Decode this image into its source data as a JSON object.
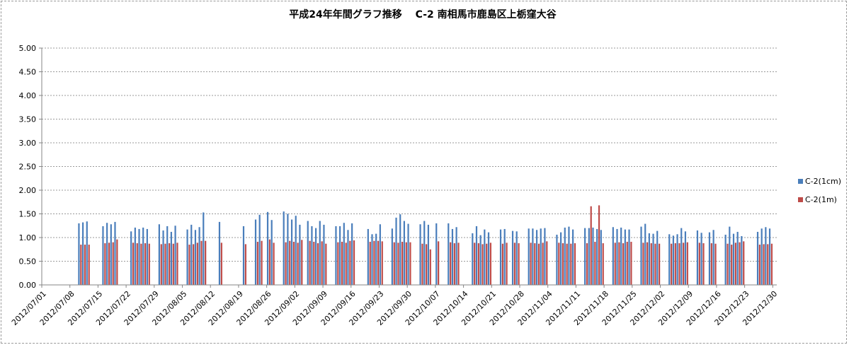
{
  "chart_data": {
    "type": "bar",
    "title": "平成24年年間グラフ推移　 C-2 南相馬市鹿島区上栃窪大谷",
    "xlabel": "",
    "ylabel": "",
    "ylim": [
      0,
      5
    ],
    "yticks": [
      "0.00",
      "0.50",
      "1.00",
      "1.50",
      "2.00",
      "2.50",
      "3.00",
      "3.50",
      "4.00",
      "4.50",
      "5.00"
    ],
    "x_range": [
      "2012/07/01",
      "2012/12/30"
    ],
    "xtick_labels": [
      "2012/07/01",
      "2012/07/08",
      "2012/07/15",
      "2012/07/22",
      "2012/07/29",
      "2012/08/05",
      "2012/08/12",
      "2012/08/19",
      "2012/08/26",
      "2012/09/02",
      "2012/09/09",
      "2012/09/16",
      "2012/09/23",
      "2012/09/30",
      "2012/10/07",
      "2012/10/14",
      "2012/10/21",
      "2012/10/28",
      "2012/11/04",
      "2012/11/11",
      "2012/11/18",
      "2012/11/25",
      "2012/12/02",
      "2012/12/09",
      "2012/12/16",
      "2012/12/23",
      "2012/12/30"
    ],
    "grid": true,
    "legend_position": "right",
    "colors": {
      "c2_1cm": "#4a7ebb",
      "c2_1m": "#be4b48",
      "grid": "#9a9a9a",
      "axis": "#868686"
    },
    "series": [
      {
        "name": "C-2(1cm)",
        "points": [
          [
            "2012/07/10",
            1.3
          ],
          [
            "2012/07/11",
            1.32
          ],
          [
            "2012/07/12",
            1.34
          ],
          [
            "2012/07/16",
            1.24
          ],
          [
            "2012/07/17",
            1.31
          ],
          [
            "2012/07/18",
            1.28
          ],
          [
            "2012/07/19",
            1.33
          ],
          [
            "2012/07/23",
            1.13
          ],
          [
            "2012/07/24",
            1.21
          ],
          [
            "2012/07/25",
            1.18
          ],
          [
            "2012/07/26",
            1.21
          ],
          [
            "2012/07/27",
            1.18
          ],
          [
            "2012/07/30",
            1.28
          ],
          [
            "2012/07/31",
            1.15
          ],
          [
            "2012/08/01",
            1.24
          ],
          [
            "2012/08/02",
            1.12
          ],
          [
            "2012/08/03",
            1.25
          ],
          [
            "2012/08/06",
            1.17
          ],
          [
            "2012/08/07",
            1.27
          ],
          [
            "2012/08/08",
            1.16
          ],
          [
            "2012/08/09",
            1.22
          ],
          [
            "2012/08/10",
            1.53
          ],
          [
            "2012/08/14",
            1.33
          ],
          [
            "2012/08/20",
            1.24
          ],
          [
            "2012/08/23",
            1.38
          ],
          [
            "2012/08/24",
            1.48
          ],
          [
            "2012/08/26",
            1.54
          ],
          [
            "2012/08/27",
            1.37
          ],
          [
            "2012/08/30",
            1.55
          ],
          [
            "2012/08/31",
            1.5
          ],
          [
            "2012/09/01",
            1.38
          ],
          [
            "2012/09/02",
            1.46
          ],
          [
            "2012/09/03",
            1.27
          ],
          [
            "2012/09/05",
            1.35
          ],
          [
            "2012/09/06",
            1.24
          ],
          [
            "2012/09/07",
            1.2
          ],
          [
            "2012/09/08",
            1.35
          ],
          [
            "2012/09/09",
            1.27
          ],
          [
            "2012/09/12",
            1.24
          ],
          [
            "2012/09/13",
            1.24
          ],
          [
            "2012/09/14",
            1.31
          ],
          [
            "2012/09/15",
            1.16
          ],
          [
            "2012/09/16",
            1.3
          ],
          [
            "2012/09/20",
            1.18
          ],
          [
            "2012/09/21",
            1.07
          ],
          [
            "2012/09/22",
            1.08
          ],
          [
            "2012/09/23",
            1.28
          ],
          [
            "2012/09/26",
            1.19
          ],
          [
            "2012/09/27",
            1.42
          ],
          [
            "2012/09/28",
            1.49
          ],
          [
            "2012/09/29",
            1.35
          ],
          [
            "2012/09/30",
            1.29
          ],
          [
            "2012/10/03",
            1.28
          ],
          [
            "2012/10/04",
            1.35
          ],
          [
            "2012/10/05",
            1.27
          ],
          [
            "2012/10/07",
            1.3
          ],
          [
            "2012/10/10",
            1.3
          ],
          [
            "2012/10/11",
            1.18
          ],
          [
            "2012/10/12",
            1.22
          ],
          [
            "2012/10/16",
            1.09
          ],
          [
            "2012/10/17",
            1.24
          ],
          [
            "2012/10/18",
            1.05
          ],
          [
            "2012/10/19",
            1.17
          ],
          [
            "2012/10/20",
            1.11
          ],
          [
            "2012/10/23",
            1.17
          ],
          [
            "2012/10/24",
            1.18
          ],
          [
            "2012/10/26",
            1.14
          ],
          [
            "2012/10/27",
            1.13
          ],
          [
            "2012/10/30",
            1.19
          ],
          [
            "2012/10/31",
            1.19
          ],
          [
            "2012/11/01",
            1.16
          ],
          [
            "2012/11/02",
            1.19
          ],
          [
            "2012/11/03",
            1.2
          ],
          [
            "2012/11/06",
            1.06
          ],
          [
            "2012/11/07",
            1.11
          ],
          [
            "2012/11/08",
            1.21
          ],
          [
            "2012/11/09",
            1.23
          ],
          [
            "2012/11/10",
            1.17
          ],
          [
            "2012/11/13",
            1.2
          ],
          [
            "2012/11/14",
            1.2
          ],
          [
            "2012/11/15",
            1.21
          ],
          [
            "2012/11/16",
            1.18
          ],
          [
            "2012/11/17",
            1.16
          ],
          [
            "2012/11/20",
            1.22
          ],
          [
            "2012/11/21",
            1.18
          ],
          [
            "2012/11/22",
            1.21
          ],
          [
            "2012/11/23",
            1.17
          ],
          [
            "2012/11/24",
            1.17
          ],
          [
            "2012/11/27",
            1.23
          ],
          [
            "2012/11/28",
            1.29
          ],
          [
            "2012/11/29",
            1.09
          ],
          [
            "2012/11/30",
            1.08
          ],
          [
            "2012/12/01",
            1.14
          ],
          [
            "2012/12/04",
            1.07
          ],
          [
            "2012/12/05",
            1.04
          ],
          [
            "2012/12/06",
            1.07
          ],
          [
            "2012/12/07",
            1.2
          ],
          [
            "2012/12/08",
            1.13
          ],
          [
            "2012/12/11",
            1.15
          ],
          [
            "2012/12/12",
            1.1
          ],
          [
            "2012/12/14",
            1.11
          ],
          [
            "2012/12/15",
            1.16
          ],
          [
            "2012/12/18",
            1.06
          ],
          [
            "2012/12/19",
            1.23
          ],
          [
            "2012/12/20",
            1.08
          ],
          [
            "2012/12/21",
            1.12
          ],
          [
            "2012/12/22",
            1.03
          ],
          [
            "2012/12/26",
            1.12
          ],
          [
            "2012/12/27",
            1.19
          ],
          [
            "2012/12/28",
            1.22
          ],
          [
            "2012/12/29",
            1.19
          ]
        ]
      },
      {
        "name": "C-2(1m)",
        "points": [
          [
            "2012/07/10",
            0.85
          ],
          [
            "2012/07/11",
            0.85
          ],
          [
            "2012/07/12",
            0.85
          ],
          [
            "2012/07/16",
            0.88
          ],
          [
            "2012/07/17",
            0.89
          ],
          [
            "2012/07/18",
            0.9
          ],
          [
            "2012/07/19",
            0.96
          ],
          [
            "2012/07/23",
            0.89
          ],
          [
            "2012/07/24",
            0.88
          ],
          [
            "2012/07/25",
            0.87
          ],
          [
            "2012/07/26",
            0.88
          ],
          [
            "2012/07/27",
            0.87
          ],
          [
            "2012/07/30",
            0.86
          ],
          [
            "2012/07/31",
            0.87
          ],
          [
            "2012/08/01",
            0.88
          ],
          [
            "2012/08/02",
            0.87
          ],
          [
            "2012/08/03",
            0.89
          ],
          [
            "2012/08/06",
            0.85
          ],
          [
            "2012/08/07",
            0.86
          ],
          [
            "2012/08/08",
            0.89
          ],
          [
            "2012/08/09",
            0.93
          ],
          [
            "2012/08/10",
            0.93
          ],
          [
            "2012/08/14",
            0.89
          ],
          [
            "2012/08/20",
            0.86
          ],
          [
            "2012/08/23",
            0.91
          ],
          [
            "2012/08/24",
            0.93
          ],
          [
            "2012/08/26",
            0.96
          ],
          [
            "2012/08/27",
            0.89
          ],
          [
            "2012/08/30",
            0.9
          ],
          [
            "2012/08/31",
            0.93
          ],
          [
            "2012/09/01",
            0.91
          ],
          [
            "2012/09/02",
            0.89
          ],
          [
            "2012/09/03",
            0.95
          ],
          [
            "2012/09/05",
            0.93
          ],
          [
            "2012/09/06",
            0.91
          ],
          [
            "2012/09/07",
            0.88
          ],
          [
            "2012/09/08",
            0.92
          ],
          [
            "2012/09/09",
            0.87
          ],
          [
            "2012/09/12",
            0.9
          ],
          [
            "2012/09/13",
            0.91
          ],
          [
            "2012/09/14",
            0.89
          ],
          [
            "2012/09/15",
            0.93
          ],
          [
            "2012/09/16",
            0.94
          ],
          [
            "2012/09/20",
            0.91
          ],
          [
            "2012/09/21",
            0.93
          ],
          [
            "2012/09/22",
            0.93
          ],
          [
            "2012/09/23",
            0.92
          ],
          [
            "2012/09/26",
            0.9
          ],
          [
            "2012/09/27",
            0.89
          ],
          [
            "2012/09/28",
            0.91
          ],
          [
            "2012/09/29",
            0.9
          ],
          [
            "2012/09/30",
            0.9
          ],
          [
            "2012/10/03",
            0.87
          ],
          [
            "2012/10/04",
            0.86
          ],
          [
            "2012/10/05",
            0.75
          ],
          [
            "2012/10/07",
            0.92
          ],
          [
            "2012/10/10",
            0.9
          ],
          [
            "2012/10/11",
            0.88
          ],
          [
            "2012/10/12",
            0.89
          ],
          [
            "2012/10/16",
            0.89
          ],
          [
            "2012/10/17",
            0.88
          ],
          [
            "2012/10/18",
            0.86
          ],
          [
            "2012/10/19",
            0.87
          ],
          [
            "2012/10/20",
            0.89
          ],
          [
            "2012/10/23",
            0.87
          ],
          [
            "2012/10/24",
            0.89
          ],
          [
            "2012/10/26",
            0.89
          ],
          [
            "2012/10/27",
            0.88
          ],
          [
            "2012/10/30",
            0.89
          ],
          [
            "2012/10/31",
            0.88
          ],
          [
            "2012/11/01",
            0.87
          ],
          [
            "2012/11/02",
            0.89
          ],
          [
            "2012/11/03",
            0.92
          ],
          [
            "2012/11/06",
            0.89
          ],
          [
            "2012/11/07",
            0.88
          ],
          [
            "2012/11/08",
            0.87
          ],
          [
            "2012/11/09",
            0.87
          ],
          [
            "2012/11/10",
            0.88
          ],
          [
            "2012/11/13",
            0.88
          ],
          [
            "2012/11/14",
            1.66
          ],
          [
            "2012/11/15",
            0.91
          ],
          [
            "2012/11/16",
            1.68
          ],
          [
            "2012/11/17",
            0.88
          ],
          [
            "2012/11/20",
            0.89
          ],
          [
            "2012/11/21",
            0.9
          ],
          [
            "2012/11/22",
            0.88
          ],
          [
            "2012/11/23",
            0.91
          ],
          [
            "2012/11/24",
            0.91
          ],
          [
            "2012/11/27",
            0.89
          ],
          [
            "2012/11/28",
            0.9
          ],
          [
            "2012/11/29",
            0.88
          ],
          [
            "2012/11/30",
            0.87
          ],
          [
            "2012/12/01",
            0.87
          ],
          [
            "2012/12/04",
            0.87
          ],
          [
            "2012/12/05",
            0.88
          ],
          [
            "2012/12/06",
            0.88
          ],
          [
            "2012/12/07",
            0.89
          ],
          [
            "2012/12/08",
            0.9
          ],
          [
            "2012/12/11",
            0.89
          ],
          [
            "2012/12/12",
            0.88
          ],
          [
            "2012/12/14",
            0.88
          ],
          [
            "2012/12/15",
            0.87
          ],
          [
            "2012/12/18",
            0.87
          ],
          [
            "2012/12/19",
            0.85
          ],
          [
            "2012/12/20",
            0.89
          ],
          [
            "2012/12/21",
            0.9
          ],
          [
            "2012/12/22",
            0.92
          ],
          [
            "2012/12/26",
            0.85
          ],
          [
            "2012/12/27",
            0.86
          ],
          [
            "2012/12/28",
            0.86
          ],
          [
            "2012/12/29",
            0.87
          ]
        ]
      }
    ]
  }
}
